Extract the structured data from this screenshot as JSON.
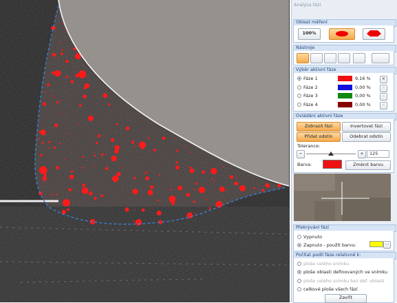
{
  "panel_title": "Analýza fází",
  "measure_area": {
    "title": "Oblast měření",
    "zoom_button": "100%"
  },
  "tools": {
    "title": "Nástroje"
  },
  "phase_selection": {
    "title": "Výběr aktivní fáze",
    "selected": 0,
    "phases": [
      {
        "name": "Fáze 1",
        "color": "#ee1111",
        "percent": "9,16 %"
      },
      {
        "name": "Fáze 2",
        "color": "#1111dd",
        "percent": "0,00 %"
      },
      {
        "name": "Fáze 3",
        "color": "#118811",
        "percent": "0,00 %"
      },
      {
        "name": "Fáze 4",
        "color": "#880000",
        "percent": "0,00 %"
      }
    ]
  },
  "phase_control": {
    "title": "Ovládání aktivní fáze",
    "show": "Zobrazit fázi",
    "invert": "Invertovat fázi",
    "add_shade": "Přidat odstín",
    "remove_shade": "Odebrat odstín",
    "tolerance_label": "Tolerance:",
    "tolerance": 125,
    "color_label": "Barva:",
    "phase_color": "#ee1111",
    "change_color": "Změnit barvu"
  },
  "overlay": {
    "title": "Překrývání fází",
    "selected": 1,
    "options": [
      "Vypnuto",
      "Zapnuto - použít barvu:"
    ],
    "color": "#ffff00",
    "more": "..."
  },
  "relative": {
    "title": "Počítat podíl fáze relativně k:",
    "selected": 1,
    "options": [
      {
        "label": "ploše celého snímku",
        "enabled": false
      },
      {
        "label": "ploše oblasti definovaných ve snímku",
        "enabled": true
      },
      {
        "label": "ploše celého snímku bez def. oblasti",
        "enabled": false
      },
      {
        "label": "celkové ploše všech fází",
        "enabled": true
      }
    ]
  },
  "close": "Zavřít"
}
